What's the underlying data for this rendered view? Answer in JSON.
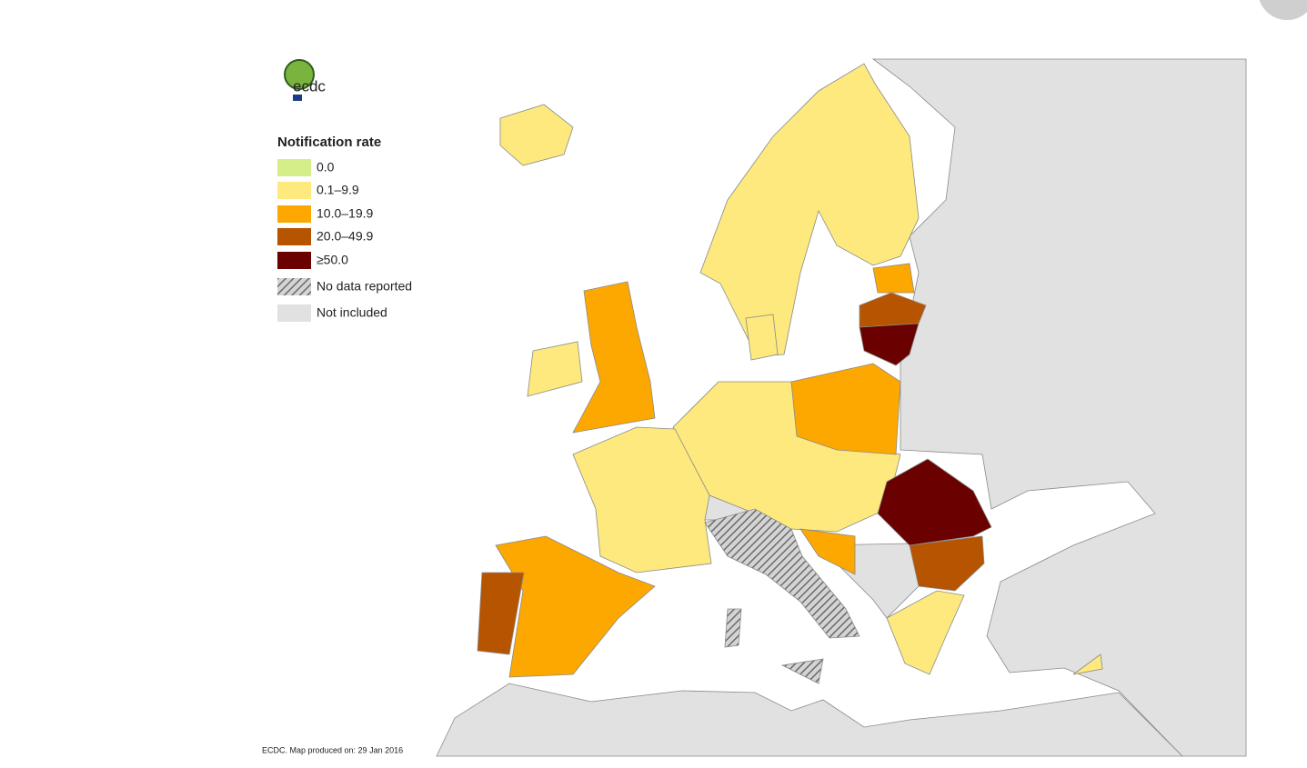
{
  "logo": {
    "text": "ecdc"
  },
  "legend": {
    "title": "Notification rate",
    "items": [
      {
        "label": "0.0",
        "color": "#d6ee8a"
      },
      {
        "label": "0.1–9.9",
        "color": "#fde97e"
      },
      {
        "label": "10.0–19.9",
        "color": "#fca800"
      },
      {
        "label": "20.0–49.9",
        "color": "#b65400"
      },
      {
        "label": "≥50.0",
        "color": "#6a0000"
      },
      {
        "label": "No data reported",
        "color": "hatch"
      },
      {
        "label": "Not included",
        "color": "#e1e1e1"
      }
    ]
  },
  "footer": "ECDC. Map produced on: 29 Jan 2016"
}
